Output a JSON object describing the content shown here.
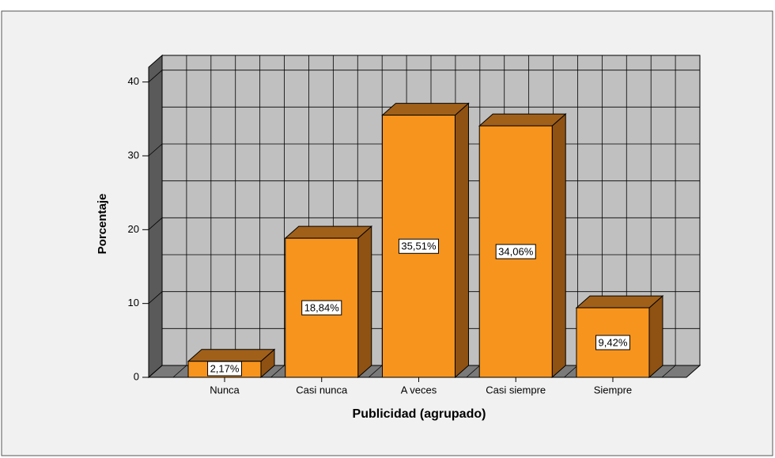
{
  "chart_data": {
    "type": "bar3d",
    "x_label": "Publicidad (agrupado)",
    "y_label": "Porcentaje",
    "categories": [
      "Nunca",
      "Casi nunca",
      "A veces",
      "Casi siempre",
      "Siempre"
    ],
    "values": [
      2.17,
      18.84,
      35.51,
      34.06,
      9.42
    ],
    "value_labels": [
      "2,17%",
      "18,84%",
      "35,51%",
      "34,06%",
      "9,42%"
    ],
    "color": "#f7941d",
    "ylim": [
      0,
      42
    ],
    "yticks": [
      0,
      10,
      20,
      30,
      40
    ],
    "grid": true
  }
}
